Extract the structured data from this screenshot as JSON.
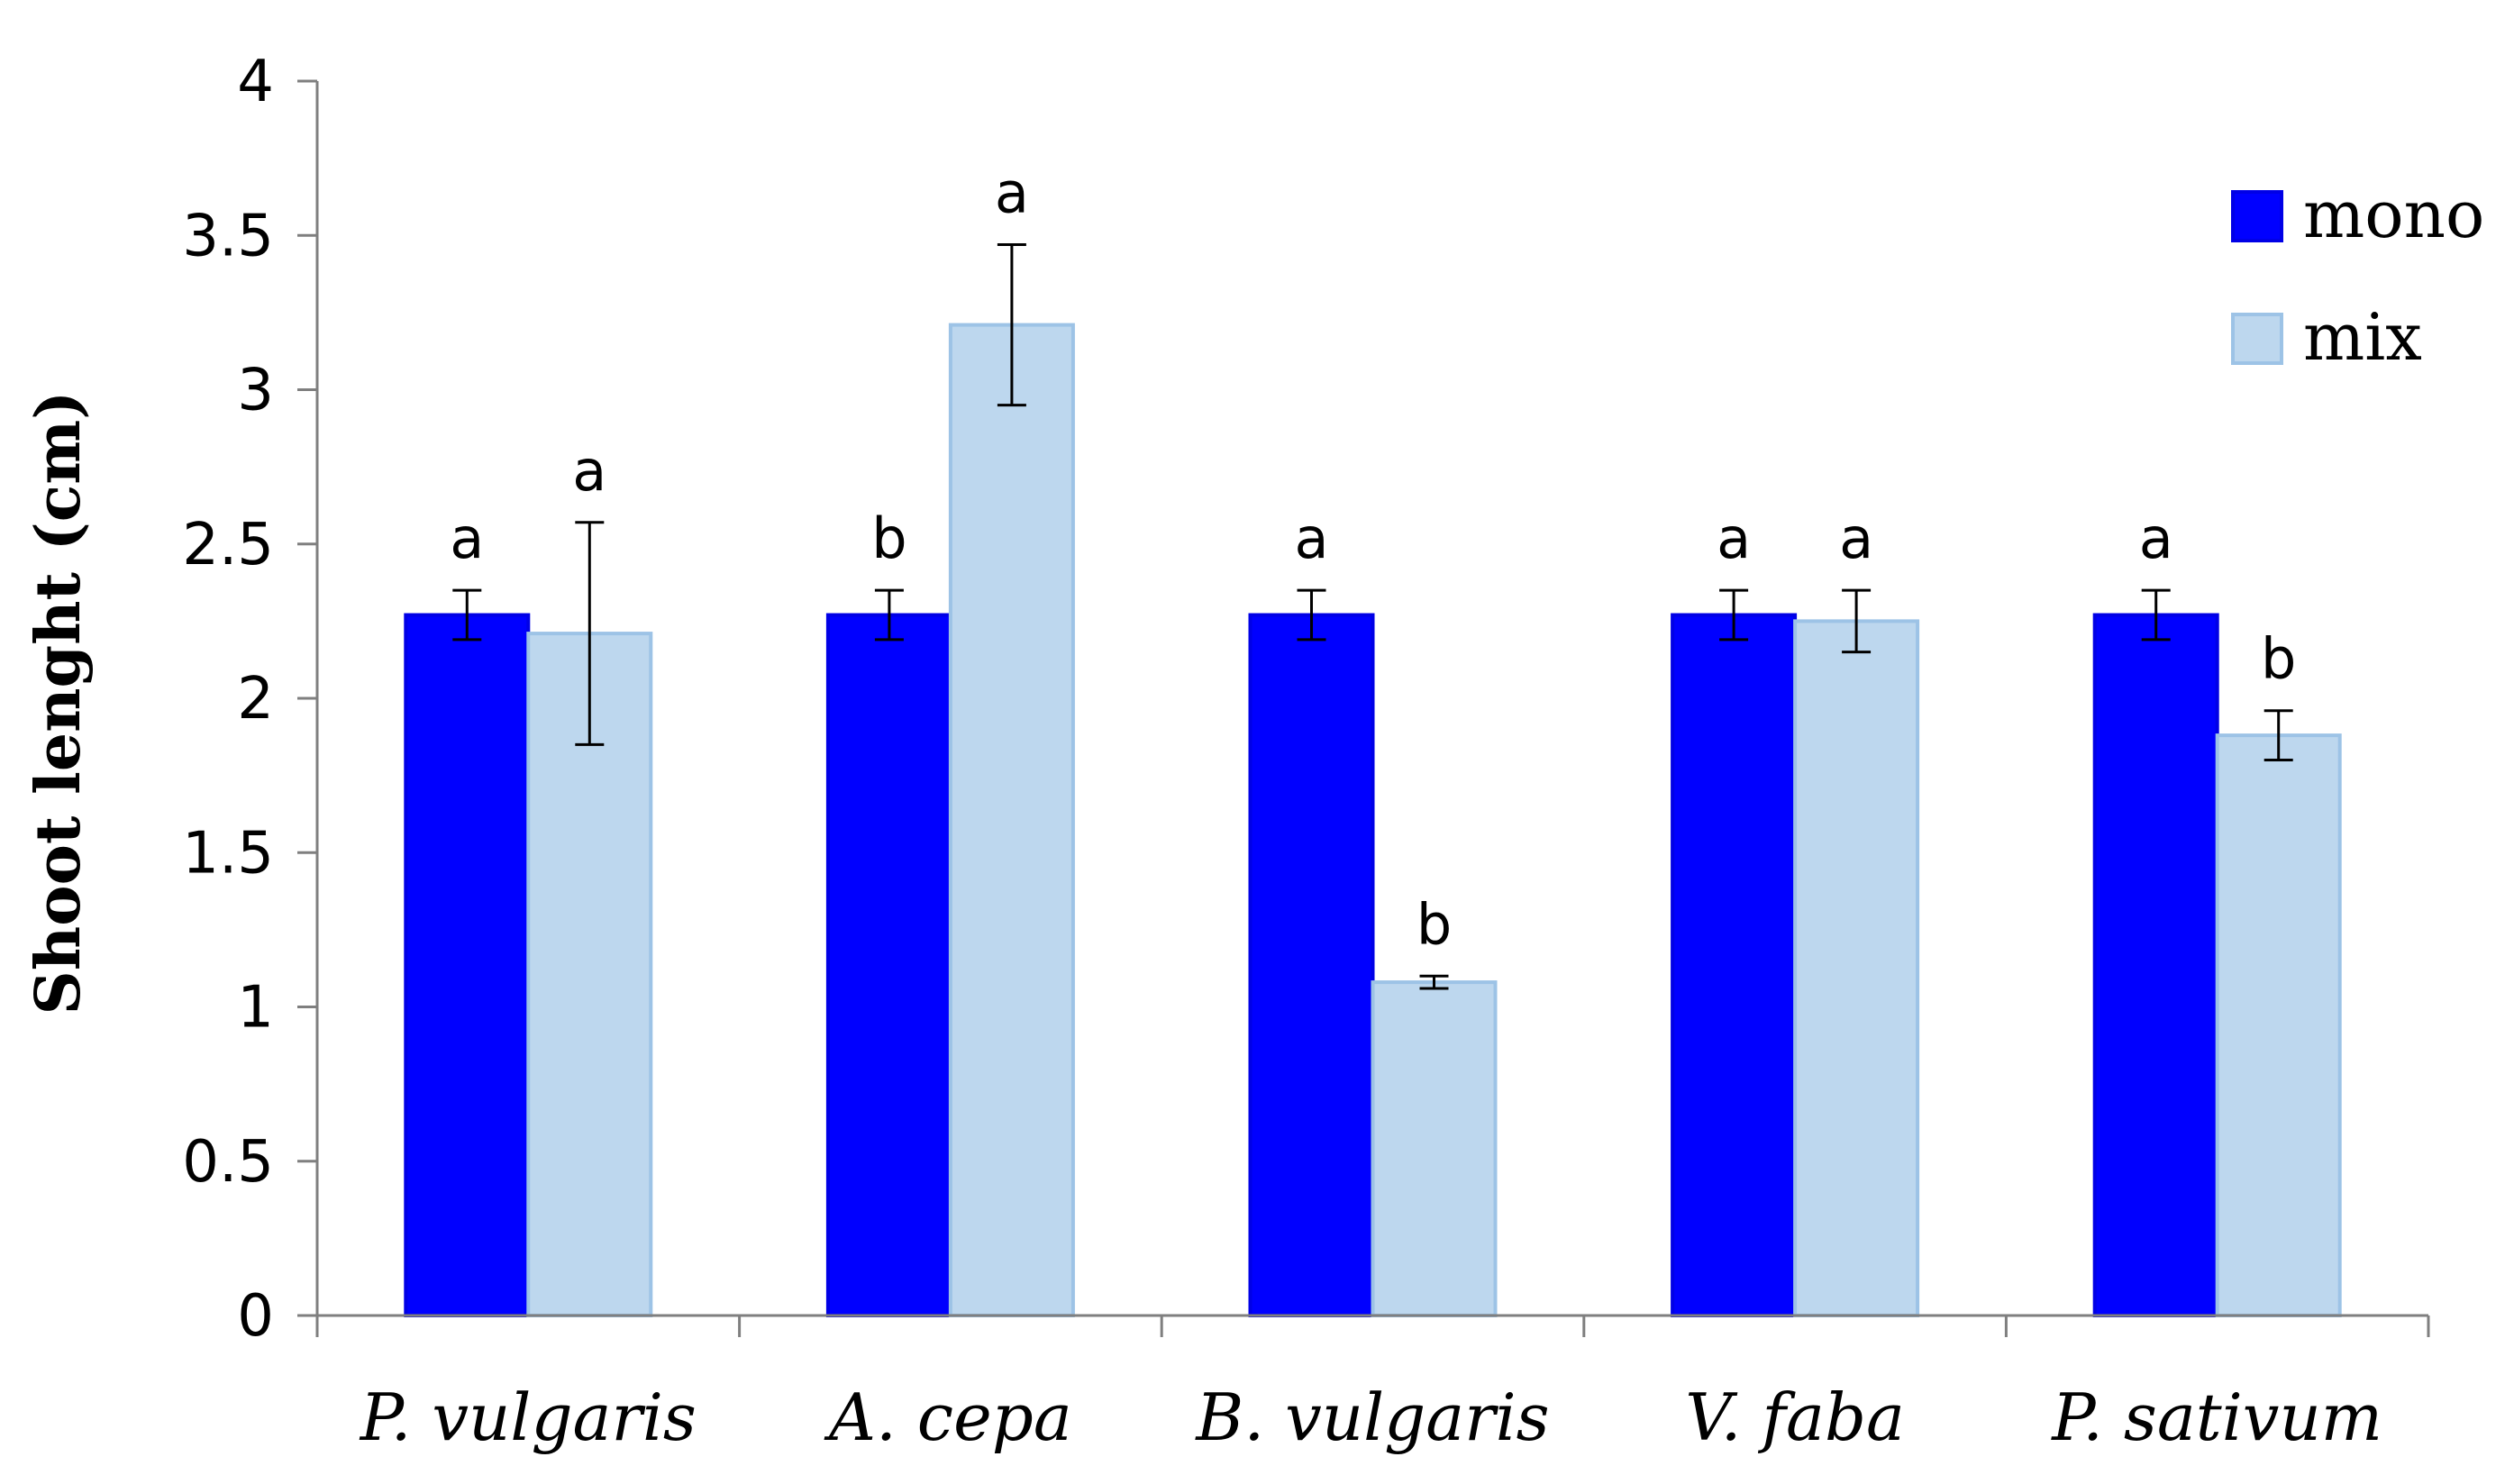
{
  "chart_data": {
    "type": "bar",
    "ylabel": "Shoot lenght (cm)",
    "xlabel": "",
    "ylim": [
      0,
      4
    ],
    "yticks": [
      0,
      0.5,
      1,
      1.5,
      2,
      2.5,
      3,
      3.5,
      4
    ],
    "ytick_labels": [
      "0",
      "0.5",
      "1",
      "1.5",
      "2",
      "2.5",
      "3",
      "3.5",
      "4"
    ],
    "categories": [
      "P. vulgaris",
      "A. cepa",
      "B. vulgaris",
      "V. faba",
      "P. sativum"
    ],
    "legend_position": "top-right",
    "series": [
      {
        "name": "mono",
        "color": "#0000ff",
        "values": [
          2.27,
          2.27,
          2.27,
          2.27,
          2.27
        ],
        "errors": [
          0.08,
          0.08,
          0.08,
          0.08,
          0.08
        ],
        "significance": [
          "a",
          "b",
          "a",
          "a",
          "a"
        ]
      },
      {
        "name": "mix",
        "color": "#bdd7ee",
        "values": [
          2.21,
          3.21,
          1.08,
          2.25,
          1.88
        ],
        "errors": [
          0.36,
          0.26,
          0.02,
          0.1,
          0.08
        ],
        "significance": [
          "a",
          "a",
          "b",
          "a",
          "b"
        ]
      }
    ]
  }
}
